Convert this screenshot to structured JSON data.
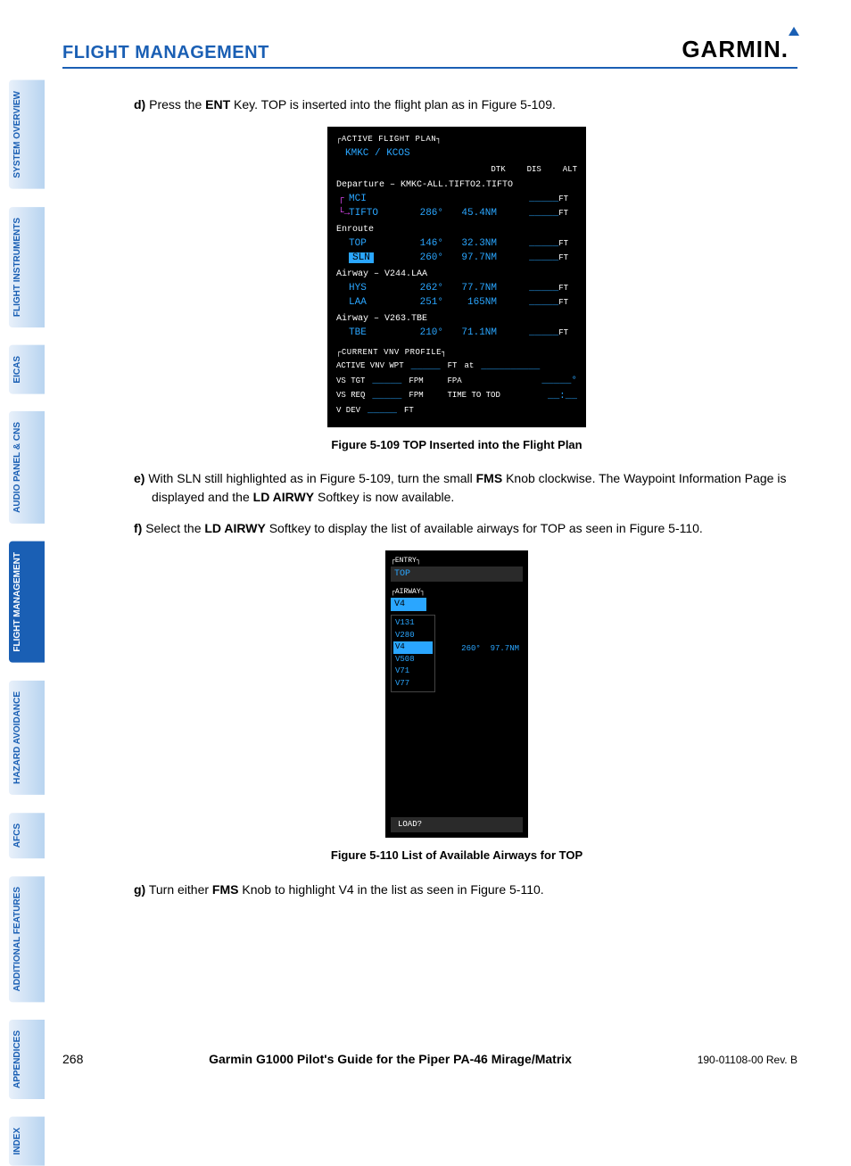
{
  "header": {
    "section": "FLIGHT MANAGEMENT",
    "brand": "GARMIN"
  },
  "sidebar": [
    {
      "label": "SYSTEM OVERVIEW",
      "active": false
    },
    {
      "label": "FLIGHT INSTRUMENTS",
      "active": false
    },
    {
      "label": "EICAS",
      "active": false
    },
    {
      "label": "AUDIO PANEL & CNS",
      "active": false
    },
    {
      "label": "FLIGHT MANAGEMENT",
      "active": true
    },
    {
      "label": "HAZARD AVOIDANCE",
      "active": false
    },
    {
      "label": "AFCS",
      "active": false
    },
    {
      "label": "ADDITIONAL FEATURES",
      "active": false
    },
    {
      "label": "APPENDICES",
      "active": false
    },
    {
      "label": "INDEX",
      "active": false
    }
  ],
  "steps": {
    "d_prefix": "d)",
    "d_text1": " Press the ",
    "d_bold1": "ENT",
    "d_text2": " Key.  TOP is inserted into the flight plan as in Figure 5-109.",
    "e_prefix": "e)",
    "e_text1": " With SLN still highlighted as in Figure 5-109, turn the small ",
    "e_bold1": "FMS",
    "e_text2": " Knob clockwise.  The Waypoint Information Page is displayed and the ",
    "e_bold2": "LD AIRWY",
    "e_text3": " Softkey is now available.",
    "f_prefix": "f)",
    "f_text1": " Select the ",
    "f_bold1": "LD AIRWY",
    "f_text2": " Softkey to display the list of available airways for TOP as seen in Figure 5-110.",
    "g_prefix": "g)",
    "g_text1": " Turn either ",
    "g_bold1": "FMS",
    "g_text2": " Knob to highlight V4 in the list as seen in Figure 5-110."
  },
  "fig1": {
    "caption": "Figure 5-109  TOP Inserted into the Flight Plan",
    "title": "ACTIVE FLIGHT PLAN",
    "route": "KMKC / KCOS",
    "cols": {
      "dtk": "DTK",
      "dis": "DIS",
      "alt": "ALT"
    },
    "departure": "Departure – KMKC-ALL.TIFTO2.TIFTO",
    "rows": [
      {
        "wpt": "MCI",
        "dtk": "",
        "dis": "",
        "alt": "_____",
        "ft": "FT",
        "leg": true
      },
      {
        "wpt": "TIFTO",
        "dtk": "286°",
        "dis": "45.4NM",
        "alt": "_____",
        "ft": "FT",
        "leg": true
      },
      {
        "section": "Enroute"
      },
      {
        "wpt": "TOP",
        "dtk": "146°",
        "dis": "32.3NM",
        "alt": "_____",
        "ft": "FT"
      },
      {
        "wpt": "SLN",
        "dtk": "260°",
        "dis": "97.7NM",
        "alt": "_____",
        "ft": "FT",
        "hl": true
      },
      {
        "section": "Airway – V244.LAA"
      },
      {
        "wpt": "HYS",
        "dtk": "262°",
        "dis": "77.7NM",
        "alt": "_____",
        "ft": "FT"
      },
      {
        "wpt": "LAA",
        "dtk": "251°",
        "dis": "165NM",
        "alt": "_____",
        "ft": "FT"
      },
      {
        "section": "Airway – V263.TBE"
      },
      {
        "wpt": "TBE",
        "dtk": "210°",
        "dis": "71.1NM",
        "alt": "_____",
        "ft": "FT"
      }
    ],
    "vnv": {
      "title": "CURRENT VNV PROFILE",
      "r1a": "ACTIVE VNV WPT",
      "r1b": "_____",
      "r1c": "FT",
      "r1d": "at",
      "r1e": "__________",
      "r2a": "VS TGT",
      "r2b": "_____",
      "r2c": "FPM",
      "r2d": "FPA",
      "r2e": "_____°",
      "r3a": "VS REQ",
      "r3b": "_____",
      "r3c": "FPM",
      "r3d": "TIME TO TOD",
      "r3e": "__:__",
      "r4a": "V DEV",
      "r4b": "_____",
      "r4c": "FT"
    }
  },
  "fig2": {
    "caption": "Figure 5-110  List of Available Airways for TOP",
    "entry_lbl": "ENTRY",
    "entry_val": "TOP",
    "airway_lbl": "AIRWAY",
    "airway_val": "V4",
    "list": [
      "V131",
      "V280",
      "V4",
      "V508",
      "V71",
      "V77"
    ],
    "selected": "V4",
    "info_dtk": "260°",
    "info_dis": "97.7NM",
    "load": "LOAD?"
  },
  "footer": {
    "page": "268",
    "guide": "Garmin G1000 Pilot's Guide for the Piper PA-46 Mirage/Matrix",
    "rev": "190-01108-00  Rev. B"
  }
}
